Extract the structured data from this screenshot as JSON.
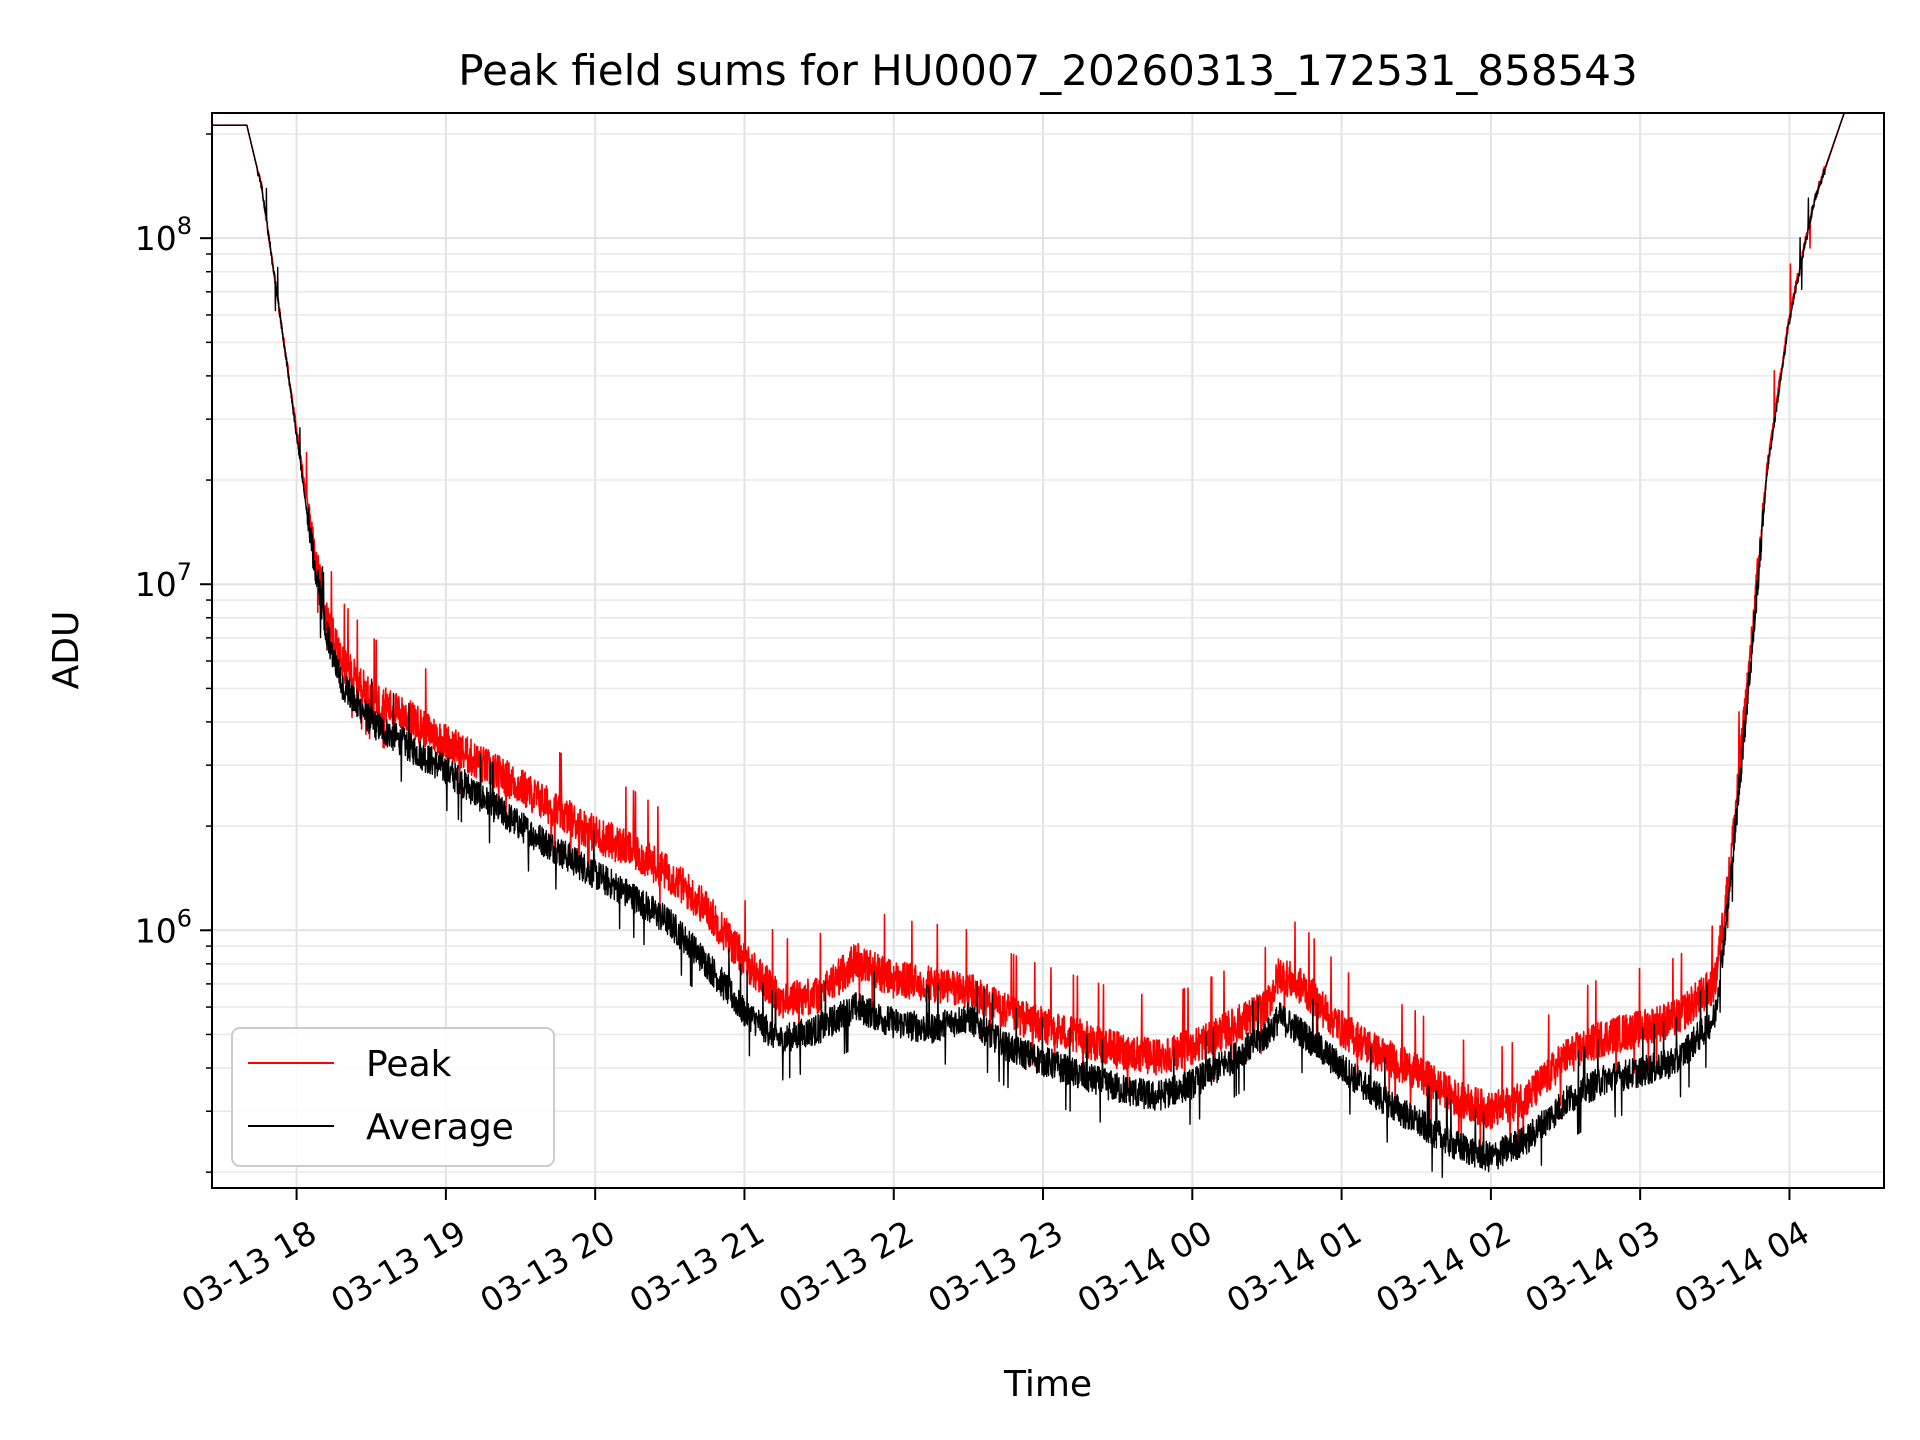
{
  "chart_data": {
    "type": "line",
    "title": "Peak field sums for HU0007_20260313_172531_858543",
    "xlabel": "Time",
    "ylabel": "ADU",
    "yscale": "log",
    "grid": true,
    "legend_position": "lower-left",
    "xlim": [
      "2026-03-13 17:26",
      "2026-03-14 04:38"
    ],
    "ylim": [
      180000,
      230000000
    ],
    "x_ticks": [
      {
        "value": "2026-03-13 18:00",
        "label": "03-13 18"
      },
      {
        "value": "2026-03-13 19:00",
        "label": "03-13 19"
      },
      {
        "value": "2026-03-13 20:00",
        "label": "03-13 20"
      },
      {
        "value": "2026-03-13 21:00",
        "label": "03-13 21"
      },
      {
        "value": "2026-03-13 22:00",
        "label": "03-13 22"
      },
      {
        "value": "2026-03-13 23:00",
        "label": "03-13 23"
      },
      {
        "value": "2026-03-14 00:00",
        "label": "03-14 00"
      },
      {
        "value": "2026-03-14 01:00",
        "label": "03-14 01"
      },
      {
        "value": "2026-03-14 02:00",
        "label": "03-14 02"
      },
      {
        "value": "2026-03-14 03:00",
        "label": "03-14 03"
      },
      {
        "value": "2026-03-14 04:00",
        "label": "03-14 04"
      }
    ],
    "y_ticks": [
      {
        "value": 1000000,
        "base": "10",
        "exp": "6"
      },
      {
        "value": 10000000,
        "base": "10",
        "exp": "7"
      },
      {
        "value": 100000000,
        "base": "10",
        "exp": "8"
      }
    ],
    "series": [
      {
        "name": "Peak",
        "color": "#ff0000",
        "points": [
          [
            "2026-03-13 17:26",
            212000000
          ],
          [
            "2026-03-13 17:40",
            212000000
          ],
          [
            "2026-03-13 17:46",
            140000000
          ],
          [
            "2026-03-13 17:52",
            70000000
          ],
          [
            "2026-03-13 18:00",
            28000000
          ],
          [
            "2026-03-13 18:06",
            14000000
          ],
          [
            "2026-03-13 18:12",
            8000000
          ],
          [
            "2026-03-13 18:18",
            6000000
          ],
          [
            "2026-03-13 18:30",
            4700000
          ],
          [
            "2026-03-13 18:45",
            4100000
          ],
          [
            "2026-03-13 19:00",
            3500000
          ],
          [
            "2026-03-13 19:15",
            3000000
          ],
          [
            "2026-03-13 19:30",
            2600000
          ],
          [
            "2026-03-13 19:45",
            2200000
          ],
          [
            "2026-03-13 20:00",
            1900000
          ],
          [
            "2026-03-13 20:15",
            1700000
          ],
          [
            "2026-03-13 20:30",
            1450000
          ],
          [
            "2026-03-13 20:45",
            1150000
          ],
          [
            "2026-03-13 21:00",
            820000
          ],
          [
            "2026-03-13 21:15",
            630000
          ],
          [
            "2026-03-13 21:30",
            650000
          ],
          [
            "2026-03-13 21:45",
            820000
          ],
          [
            "2026-03-13 22:00",
            720000
          ],
          [
            "2026-03-13 22:15",
            700000
          ],
          [
            "2026-03-13 22:30",
            670000
          ],
          [
            "2026-03-13 22:45",
            580000
          ],
          [
            "2026-03-13 23:00",
            530000
          ],
          [
            "2026-03-13 23:15",
            490000
          ],
          [
            "2026-03-13 23:30",
            450000
          ],
          [
            "2026-03-13 23:45",
            430000
          ],
          [
            "2026-03-14 00:00",
            460000
          ],
          [
            "2026-03-14 00:15",
            520000
          ],
          [
            "2026-03-14 00:30",
            600000
          ],
          [
            "2026-03-14 00:35",
            750000
          ],
          [
            "2026-03-14 00:45",
            680000
          ],
          [
            "2026-03-14 01:00",
            520000
          ],
          [
            "2026-03-14 01:15",
            440000
          ],
          [
            "2026-03-14 01:30",
            390000
          ],
          [
            "2026-03-14 01:45",
            330000
          ],
          [
            "2026-03-14 02:00",
            300000
          ],
          [
            "2026-03-14 02:15",
            330000
          ],
          [
            "2026-03-14 02:30",
            430000
          ],
          [
            "2026-03-14 02:45",
            490000
          ],
          [
            "2026-03-14 03:00",
            520000
          ],
          [
            "2026-03-14 03:15",
            560000
          ],
          [
            "2026-03-14 03:30",
            700000
          ],
          [
            "2026-03-14 03:36",
            1500000
          ],
          [
            "2026-03-14 03:40",
            3000000
          ],
          [
            "2026-03-14 03:45",
            7000000
          ],
          [
            "2026-03-14 03:51",
            22000000
          ],
          [
            "2026-03-14 04:00",
            60000000
          ],
          [
            "2026-03-14 04:10",
            130000000
          ],
          [
            "2026-03-14 04:22",
            230000000
          ],
          [
            "2026-03-14 04:38",
            230000000
          ]
        ]
      },
      {
        "name": "Average",
        "color": "#000000",
        "points": [
          [
            "2026-03-13 17:26",
            212000000
          ],
          [
            "2026-03-13 17:40",
            212000000
          ],
          [
            "2026-03-13 17:46",
            140000000
          ],
          [
            "2026-03-13 17:52",
            70000000
          ],
          [
            "2026-03-13 18:00",
            27000000
          ],
          [
            "2026-03-13 18:06",
            13000000
          ],
          [
            "2026-03-13 18:12",
            7200000
          ],
          [
            "2026-03-13 18:18",
            5200000
          ],
          [
            "2026-03-13 18:30",
            4000000
          ],
          [
            "2026-03-13 18:45",
            3400000
          ],
          [
            "2026-03-13 19:00",
            2900000
          ],
          [
            "2026-03-13 19:15",
            2400000
          ],
          [
            "2026-03-13 19:30",
            2000000
          ],
          [
            "2026-03-13 19:45",
            1700000
          ],
          [
            "2026-03-13 20:00",
            1450000
          ],
          [
            "2026-03-13 20:15",
            1250000
          ],
          [
            "2026-03-13 20:30",
            1050000
          ],
          [
            "2026-03-13 20:45",
            800000
          ],
          [
            "2026-03-13 21:00",
            580000
          ],
          [
            "2026-03-13 21:15",
            480000
          ],
          [
            "2026-03-13 21:30",
            520000
          ],
          [
            "2026-03-13 21:45",
            600000
          ],
          [
            "2026-03-13 22:00",
            540000
          ],
          [
            "2026-03-13 22:15",
            520000
          ],
          [
            "2026-03-13 22:30",
            560000
          ],
          [
            "2026-03-13 22:45",
            460000
          ],
          [
            "2026-03-13 23:00",
            420000
          ],
          [
            "2026-03-13 23:15",
            380000
          ],
          [
            "2026-03-13 23:30",
            350000
          ],
          [
            "2026-03-13 23:45",
            330000
          ],
          [
            "2026-03-14 00:00",
            360000
          ],
          [
            "2026-03-14 00:15",
            420000
          ],
          [
            "2026-03-14 00:30",
            500000
          ],
          [
            "2026-03-14 00:35",
            560000
          ],
          [
            "2026-03-14 00:45",
            500000
          ],
          [
            "2026-03-14 01:00",
            400000
          ],
          [
            "2026-03-14 01:15",
            330000
          ],
          [
            "2026-03-14 01:30",
            280000
          ],
          [
            "2026-03-14 01:45",
            240000
          ],
          [
            "2026-03-14 02:00",
            220000
          ],
          [
            "2026-03-14 02:15",
            250000
          ],
          [
            "2026-03-14 02:30",
            320000
          ],
          [
            "2026-03-14 02:45",
            370000
          ],
          [
            "2026-03-14 03:00",
            390000
          ],
          [
            "2026-03-14 03:15",
            420000
          ],
          [
            "2026-03-14 03:30",
            560000
          ],
          [
            "2026-03-14 03:36",
            1300000
          ],
          [
            "2026-03-14 03:40",
            2700000
          ],
          [
            "2026-03-14 03:45",
            6500000
          ],
          [
            "2026-03-14 03:51",
            21000000
          ],
          [
            "2026-03-14 04:00",
            58000000
          ],
          [
            "2026-03-14 04:10",
            128000000
          ],
          [
            "2026-03-14 04:22",
            230000000
          ],
          [
            "2026-03-14 04:38",
            230000000
          ]
        ]
      }
    ]
  }
}
